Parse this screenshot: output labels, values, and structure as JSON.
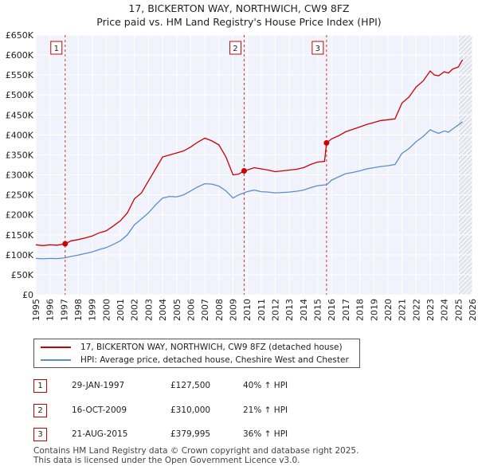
{
  "chart_data": {
    "type": "line",
    "title": "17, BICKERTON WAY, NORTHWICH, CW9 8FZ",
    "subtitle": "Price paid vs. HM Land Registry's House Price Index (HPI)",
    "xlim": [
      1995,
      2026
    ],
    "ylim": [
      0,
      650000
    ],
    "x_ticks": [
      "1995",
      "1996",
      "1997",
      "1998",
      "1999",
      "2000",
      "2001",
      "2002",
      "2003",
      "2004",
      "2005",
      "2006",
      "2007",
      "2008",
      "2009",
      "2010",
      "2011",
      "2012",
      "2013",
      "2014",
      "2015",
      "2016",
      "2017",
      "2018",
      "2019",
      "2020",
      "2021",
      "2022",
      "2023",
      "2024",
      "2025",
      "2026"
    ],
    "y_ticks": [
      {
        "value": 0,
        "label": "£0"
      },
      {
        "value": 50000,
        "label": "£50K"
      },
      {
        "value": 100000,
        "label": "£100K"
      },
      {
        "value": 150000,
        "label": "£150K"
      },
      {
        "value": 200000,
        "label": "£200K"
      },
      {
        "value": 250000,
        "label": "£250K"
      },
      {
        "value": 300000,
        "label": "£300K"
      },
      {
        "value": 350000,
        "label": "£350K"
      },
      {
        "value": 400000,
        "label": "£400K"
      },
      {
        "value": 450000,
        "label": "£450K"
      },
      {
        "value": 500000,
        "label": "£500K"
      },
      {
        "value": 550000,
        "label": "£550K"
      },
      {
        "value": 600000,
        "label": "£600K"
      },
      {
        "value": 650000,
        "label": "£650K"
      }
    ],
    "forecast_start": 2025.0,
    "series": [
      {
        "name": "17, BICKERTON WAY, NORTHWICH, CW9 8FZ (detached house)",
        "color": "#cc0000",
        "x": [
          1995.0,
          1995.5,
          1996.0,
          1996.5,
          1997.08,
          1997.5,
          1998.0,
          1998.5,
          1999.0,
          1999.5,
          2000.0,
          2000.5,
          2001.0,
          2001.5,
          2002.0,
          2002.5,
          2003.0,
          2003.5,
          2004.0,
          2004.5,
          2005.0,
          2005.5,
          2006.0,
          2006.5,
          2007.0,
          2007.5,
          2008.0,
          2008.5,
          2009.0,
          2009.4,
          2009.79,
          2010.0,
          2010.5,
          2011.0,
          2011.5,
          2012.0,
          2012.5,
          2013.0,
          2013.5,
          2014.0,
          2014.5,
          2015.0,
          2015.5,
          2015.64,
          2016.0,
          2016.5,
          2017.0,
          2017.5,
          2018.0,
          2018.5,
          2019.0,
          2019.5,
          2020.0,
          2020.5,
          2021.0,
          2021.5,
          2022.0,
          2022.5,
          2023.0,
          2023.3,
          2023.6,
          2024.0,
          2024.3,
          2024.6,
          2025.0,
          2025.3
        ],
        "y": [
          125000,
          123000,
          125000,
          124000,
          127500,
          135000,
          138000,
          142000,
          147000,
          155000,
          160000,
          172000,
          185000,
          205000,
          240000,
          255000,
          285000,
          315000,
          345000,
          350000,
          355000,
          360000,
          370000,
          382000,
          392000,
          385000,
          375000,
          345000,
          300000,
          302000,
          310000,
          312000,
          318000,
          315000,
          312000,
          308000,
          310000,
          312000,
          314000,
          318000,
          326000,
          332000,
          334000,
          379995,
          390000,
          398000,
          408000,
          414000,
          420000,
          426000,
          431000,
          436000,
          438000,
          440000,
          480000,
          495000,
          520000,
          535000,
          560000,
          550000,
          548000,
          558000,
          555000,
          565000,
          570000,
          588000
        ]
      },
      {
        "name": "HPI: Average price, detached house, Cheshire West and Chester",
        "color": "#5b8ec9",
        "x": [
          1995.0,
          1995.5,
          1996.0,
          1996.5,
          1997.0,
          1997.5,
          1998.0,
          1998.5,
          1999.0,
          1999.5,
          2000.0,
          2000.5,
          2001.0,
          2001.5,
          2002.0,
          2002.5,
          2003.0,
          2003.5,
          2004.0,
          2004.5,
          2005.0,
          2005.5,
          2006.0,
          2006.5,
          2007.0,
          2007.5,
          2008.0,
          2008.5,
          2009.0,
          2009.4,
          2009.79,
          2010.0,
          2010.5,
          2011.0,
          2011.5,
          2012.0,
          2012.5,
          2013.0,
          2013.5,
          2014.0,
          2014.5,
          2015.0,
          2015.5,
          2015.64,
          2016.0,
          2016.5,
          2017.0,
          2017.5,
          2018.0,
          2018.5,
          2019.0,
          2019.5,
          2020.0,
          2020.5,
          2021.0,
          2021.5,
          2022.0,
          2022.5,
          2023.0,
          2023.3,
          2023.6,
          2024.0,
          2024.3,
          2024.6,
          2025.0,
          2025.3
        ],
        "y": [
          91000,
          90000,
          91000,
          90500,
          92000,
          96000,
          99000,
          103000,
          107000,
          113000,
          118000,
          126000,
          135000,
          150000,
          175000,
          190000,
          205000,
          225000,
          242000,
          246000,
          245000,
          250000,
          260000,
          270000,
          278000,
          277000,
          272000,
          260000,
          242000,
          250000,
          255000,
          258000,
          262000,
          258000,
          257000,
          255000,
          256000,
          257000,
          259000,
          262000,
          268000,
          273000,
          275000,
          275000,
          287000,
          295000,
          303000,
          306000,
          310000,
          315000,
          318000,
          321000,
          323000,
          326000,
          354000,
          366000,
          383000,
          396000,
          413000,
          408000,
          404000,
          410000,
          407000,
          415000,
          425000,
          433000
        ]
      }
    ],
    "transactions": [
      {
        "num": "1",
        "x": 1997.08,
        "price": 127500
      },
      {
        "num": "2",
        "x": 2009.79,
        "price": 310000
      },
      {
        "num": "3",
        "x": 2015.64,
        "price": 379995
      }
    ]
  },
  "legend": {
    "property_label": "17, BICKERTON WAY, NORTHWICH, CW9 8FZ (detached house)",
    "hpi_label": "HPI: Average price, detached house, Cheshire West and Chester",
    "property_color": "#cc0000",
    "hpi_color": "#5b8ec9"
  },
  "table": [
    {
      "num": "1",
      "date": "29-JAN-1997",
      "price": "£127,500",
      "hpi": "40% ↑ HPI"
    },
    {
      "num": "2",
      "date": "16-OCT-2009",
      "price": "£310,000",
      "hpi": "21% ↑ HPI"
    },
    {
      "num": "3",
      "date": "21-AUG-2015",
      "price": "£379,995",
      "hpi": "36% ↑ HPI"
    }
  ],
  "footer": {
    "line1": "Contains HM Land Registry data © Crown copyright and database right 2025.",
    "line2": "This data is licensed under the Open Government Licence v3.0."
  }
}
